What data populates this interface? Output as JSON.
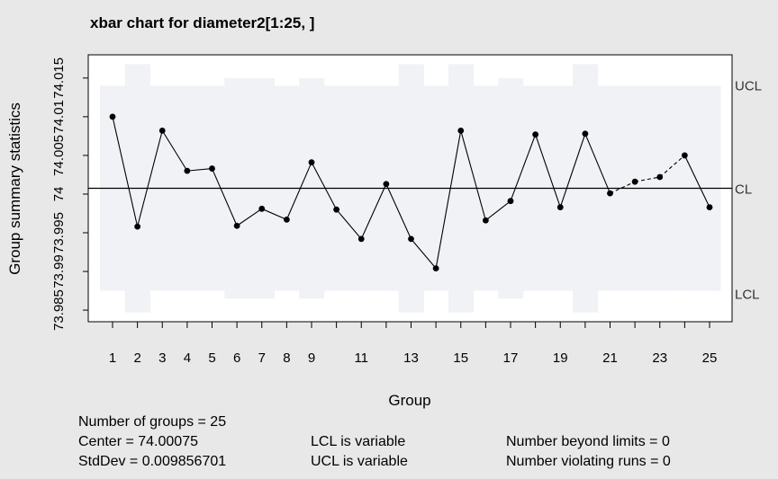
{
  "chart_data": {
    "type": "line",
    "title": "xbar chart for diameter2[1:25, ]",
    "xlabel": "Group",
    "ylabel": "Group summary statistics",
    "x": [
      1,
      2,
      3,
      4,
      5,
      6,
      7,
      8,
      9,
      10,
      11,
      12,
      13,
      14,
      15,
      16,
      17,
      18,
      19,
      20,
      21,
      22,
      23,
      24,
      25
    ],
    "y": [
      74.01,
      73.9958,
      74.0082,
      74.003,
      74.0033,
      73.9959,
      73.9981,
      73.9967,
      74.0041,
      73.998,
      73.9942,
      74.0013,
      73.9942,
      73.9904,
      74.0082,
      73.9966,
      73.9991,
      74.0077,
      73.9983,
      74.0078,
      74.0001,
      74.0016,
      74.0022,
      74.005,
      73.9983
    ],
    "xlim": [
      0.5,
      25.5
    ],
    "ylim": [
      73.9835,
      74.018
    ],
    "y_ticks": [
      73.985,
      73.995,
      74.005,
      74.015
    ],
    "y_tick_labels": [
      "73.985",
      "73.995",
      "74.005",
      "74.015"
    ],
    "y_minor_ticks": [
      73.99,
      74.0,
      74.01
    ],
    "y_minor_tick_labels": [
      "73.99",
      "74",
      "74.01"
    ],
    "x_ticks": [
      1,
      2,
      3,
      4,
      5,
      6,
      7,
      8,
      9,
      11,
      13,
      15,
      17,
      19,
      21,
      23,
      25
    ],
    "center": 74.00075,
    "ucl": [
      74.014,
      74.0168,
      74.014,
      74.014,
      74.014,
      74.015,
      74.015,
      74.014,
      74.015,
      74.014,
      74.014,
      74.014,
      74.0168,
      74.014,
      74.0168,
      74.014,
      74.015,
      74.014,
      74.014,
      74.0168,
      74.014,
      74.014,
      74.014,
      74.014,
      74.014
    ],
    "lcl": [
      73.9875,
      73.9847,
      73.9875,
      73.9875,
      73.9875,
      73.9865,
      73.9865,
      73.9875,
      73.9865,
      73.9875,
      73.9875,
      73.9875,
      73.9847,
      73.9875,
      73.9847,
      73.9875,
      73.9865,
      73.9875,
      73.9875,
      73.9847,
      73.9875,
      73.9875,
      73.9875,
      73.9875,
      73.9875
    ],
    "dashed_segments_from": [
      21,
      22,
      23
    ],
    "limit_labels": {
      "ucl": "UCL",
      "cl": "CL",
      "lcl": "LCL"
    },
    "colors": {
      "background": "#e8e8e8",
      "plot": "#ffffff",
      "band": "#f0f2f5",
      "line": "#000000"
    },
    "grid": false,
    "legend": "none"
  },
  "summary": {
    "groups": "Number of groups = 25",
    "center": "Center = 74.00075",
    "stddev": "StdDev = 0.009856701",
    "lcl": "LCL is variable",
    "ucl": "UCL is variable",
    "beyond": "Number beyond limits = 0",
    "violating": "Number violating runs = 0"
  }
}
